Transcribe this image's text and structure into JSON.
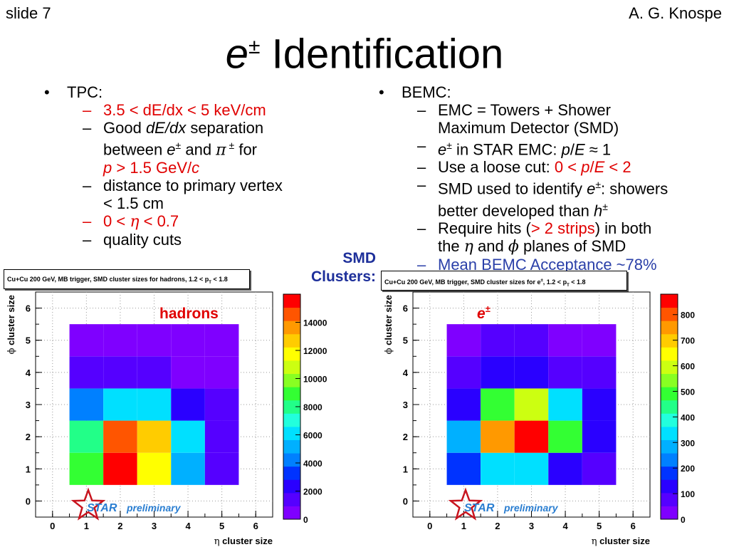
{
  "header": {
    "slide_number": "slide 7",
    "author": "A. G. Knospe",
    "title_symbol": "e",
    "title_sup": "±",
    "title_rest": " Identification"
  },
  "left_column": {
    "heading": "TPC:",
    "items": [
      {
        "text": "3.5 < dE/dx < 5 keV/cm"
      },
      {
        "line1": "Good ",
        "italic1": "dE/dx",
        "line1b": " separation",
        "line2a": "between ",
        "e": "e",
        "pm": "±",
        "and": " and ",
        "pi": "π",
        "pm2": " ±",
        "for": " for",
        "line3a": "p",
        "line3b": " > 1.5 GeV/",
        "line3c": "c"
      },
      {
        "line1": "distance to primary vertex",
        "line2": "< 1.5 cm"
      },
      {
        "text_a": "0 < ",
        "eta": "η",
        "text_b": " < 0.7"
      },
      {
        "text": "quality cuts"
      }
    ]
  },
  "right_column": {
    "heading": "BEMC:",
    "items": [
      {
        "line1": "EMC = Towers + Shower",
        "line2": "Maximum Detector (SMD)"
      },
      {
        "e": "e",
        "pm": "±",
        "a": " in STAR EMC: ",
        "p": "p",
        "slash": "/",
        "E": "E",
        "b": " ≈ 1"
      },
      {
        "a": "Use a loose cut: ",
        "red_a": "0 < ",
        "p": "p",
        "slash": "/",
        "E": "E",
        "red_b": " < 2"
      },
      {
        "line1a": "SMD used to identify ",
        "e": "e",
        "pm": "±",
        "line1b": ": showers",
        "line2a": "better developed than ",
        "h": "h",
        "pm2": "±"
      },
      {
        "line1a": "Require hits (",
        "red": "> 2 strips",
        "line1b": ") in both",
        "line2a": "the ",
        "eta": "η",
        "and": " and ",
        "phi": "ϕ",
        "line2b": " planes of SMD"
      },
      {
        "text": "Mean BEMC Acceptance ~78%"
      }
    ]
  },
  "smd_label": {
    "line1": "SMD",
    "line2": "Clusters:"
  },
  "colors": {
    "red": "#e00000",
    "blue": "#2a3fa8",
    "smd": "#1d2f9a",
    "star": "#2a7ed1"
  },
  "chart_data": [
    {
      "type": "heatmap",
      "title": "Cu+Cu 200 GeV, MB trigger, SMD cluster sizes for hadrons, 1.2 < p",
      "title_sub": "T",
      "title_end": " < 1.8",
      "xlabel_symbol": "η",
      "xlabel": " cluster size",
      "ylabel_symbol": "ϕ",
      "ylabel": " cluster size",
      "xlim": [
        -0.5,
        6.5
      ],
      "ylim": [
        -0.5,
        6.5
      ],
      "x_ticks": [
        0,
        1,
        2,
        3,
        4,
        5,
        6
      ],
      "y_ticks": [
        0,
        1,
        2,
        3,
        4,
        5,
        6
      ],
      "z_ticks": [
        "0",
        "2000",
        "4000",
        "6000",
        "8000",
        "10000",
        "12000",
        "14000"
      ],
      "z_max": 16000,
      "annotation": "hadrons",
      "logo_text": "STAR",
      "logo_sub": "preliminary",
      "x": [
        1,
        2,
        3,
        4,
        5
      ],
      "y": [
        1,
        2,
        3,
        4,
        5
      ],
      "z": [
        [
          9300,
          15800,
          11500,
          5200,
          1500
        ],
        [
          8100,
          14300,
          12800,
          6200,
          1500
        ],
        [
          4200,
          5800,
          5800,
          2300,
          1300
        ],
        [
          1800,
          1100,
          1200,
          900,
          600
        ],
        [
          600,
          600,
          600,
          600,
          400
        ]
      ]
    },
    {
      "type": "heatmap",
      "title": "Cu+Cu 200 GeV, MB trigger, SMD cluster sizes for e",
      "title_sup": "±",
      "title_mid": ", 1.2 < p",
      "title_sub": "T",
      "title_end": " < 1.8",
      "xlabel_symbol": "η",
      "xlabel": " cluster size",
      "ylabel_symbol": "ϕ",
      "ylabel": " cluster size",
      "xlim": [
        -0.5,
        6.5
      ],
      "ylim": [
        -0.5,
        6.5
      ],
      "x_ticks": [
        0,
        1,
        2,
        3,
        4,
        5,
        6
      ],
      "y_ticks": [
        0,
        1,
        2,
        3,
        4,
        5,
        6
      ],
      "z_ticks": [
        "0",
        "100",
        "200",
        "300",
        "400",
        "500",
        "600",
        "700",
        "800"
      ],
      "z_max": 880,
      "annotation": "e",
      "annotation_sup": "±",
      "logo_text": "STAR",
      "logo_sub": "preliminary",
      "x": [
        1,
        2,
        3,
        4,
        5
      ],
      "y": [
        1,
        2,
        3,
        4,
        5
      ],
      "z": [
        [
          160,
          340,
          340,
          110,
          60
        ],
        [
          300,
          730,
          860,
          470,
          120
        ],
        [
          140,
          470,
          620,
          360,
          120
        ],
        [
          80,
          140,
          120,
          80,
          70
        ],
        [
          30,
          60,
          60,
          50,
          30
        ]
      ]
    }
  ]
}
